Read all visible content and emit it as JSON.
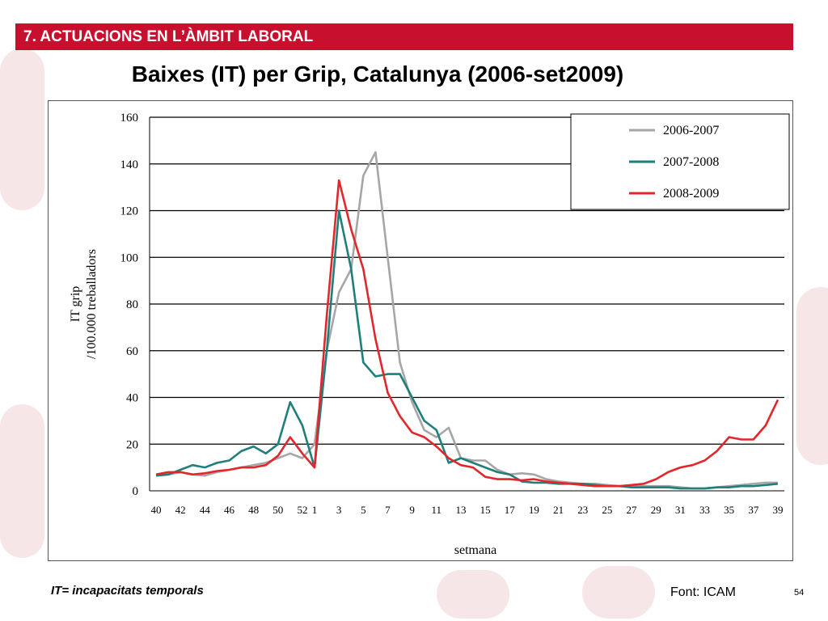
{
  "section": {
    "title": "7. ACTUACIONS EN L’ÀMBIT LABORAL"
  },
  "slide": {
    "title": "Baixes (IT) per Grip, Catalunya (2006-set2009)",
    "footnote": "IT= incapacitats temporals",
    "source": "Font: ICAM",
    "page_number": "54"
  },
  "colors": {
    "brand": "#c8102e",
    "series_2006_2007": "#a6a6a6",
    "series_2007_2008": "#1f7f7a",
    "series_2008_2009": "#e3262b"
  },
  "chart_data": {
    "type": "line",
    "title": "",
    "xlabel": "setmana",
    "ylabel_lines": [
      "IT grip",
      "/100.000 treballadors"
    ],
    "ylim": [
      0,
      160
    ],
    "yticks": [
      "0",
      "20",
      "40",
      "60",
      "80",
      "100",
      "120",
      "140",
      "160"
    ],
    "grid": true,
    "legend_position": "top-right",
    "x_categories": [
      "40",
      "41",
      "42",
      "43",
      "44",
      "45",
      "46",
      "47",
      "48",
      "49",
      "50",
      "51",
      "52",
      "1",
      "2",
      "3",
      "4",
      "5",
      "6",
      "7",
      "8",
      "9",
      "10",
      "11",
      "12",
      "13",
      "14",
      "15",
      "16",
      "17",
      "18",
      "19",
      "20",
      "21",
      "22",
      "23",
      "24",
      "25",
      "26",
      "27",
      "28",
      "29",
      "30",
      "31",
      "32",
      "33",
      "34",
      "35",
      "36",
      "37",
      "38",
      "39"
    ],
    "x_tick_labels": [
      "40",
      "42",
      "44",
      "46",
      "48",
      "50",
      "52",
      "1",
      "3",
      "5",
      "7",
      "9",
      "11",
      "13",
      "15",
      "17",
      "19",
      "21",
      "23",
      "25",
      "27",
      "29",
      "31",
      "33",
      "35",
      "37",
      "39"
    ],
    "series": [
      {
        "name": "2006-2007",
        "color": "#a6a6a6",
        "values": [
          6.5,
          7,
          8,
          7,
          6.5,
          8,
          9,
          10,
          11,
          12,
          14,
          16,
          14,
          20,
          60,
          85,
          95,
          135,
          145,
          100,
          55,
          38,
          26,
          23,
          27,
          14,
          13,
          13,
          9,
          7,
          7.5,
          7,
          5,
          4,
          3.5,
          3,
          3,
          2.5,
          2,
          2,
          2,
          2,
          2,
          1.5,
          1,
          1,
          1.5,
          2,
          2.5,
          3,
          3.5,
          3.5
        ]
      },
      {
        "name": "2007-2008",
        "color": "#1f7f7a",
        "values": [
          6.5,
          7,
          9,
          11,
          10,
          12,
          13,
          17,
          19,
          16,
          20,
          38,
          28,
          10,
          60,
          120,
          95,
          55,
          49,
          50,
          50,
          40,
          30,
          26,
          12,
          14,
          12,
          10,
          8,
          7,
          4,
          3.5,
          3.5,
          3,
          3,
          3,
          2.5,
          2,
          2,
          1.5,
          1.5,
          1.5,
          1.5,
          1,
          1,
          1,
          1.5,
          1.5,
          2,
          2,
          2.5,
          3
        ]
      },
      {
        "name": "2008-2009",
        "color": "#e3262b",
        "values": [
          7,
          8,
          8,
          7,
          7.5,
          8.5,
          9,
          10,
          10,
          11,
          15,
          23,
          16,
          10,
          75,
          133,
          112,
          95,
          65,
          42,
          32,
          25,
          23,
          19,
          14,
          11,
          10,
          6,
          5,
          5,
          4.5,
          5,
          4,
          3.5,
          3,
          2.5,
          2,
          2,
          2,
          2.5,
          3,
          5,
          8,
          10,
          11,
          13,
          17,
          23,
          22,
          22,
          28,
          39
        ]
      }
    ]
  }
}
